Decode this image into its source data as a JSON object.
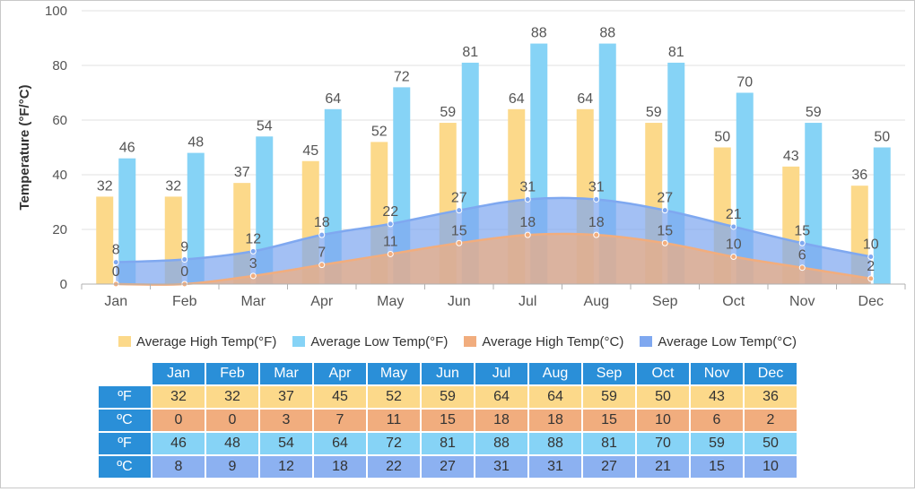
{
  "chart_data": {
    "type": "bar",
    "categories": [
      "Jan",
      "Feb",
      "Mar",
      "Apr",
      "May",
      "Jun",
      "Jul",
      "Aug",
      "Sep",
      "Oct",
      "Nov",
      "Dec"
    ],
    "ylabel": "Temperature (°F/°C)",
    "ylim": [
      0,
      100
    ],
    "yticks": [
      0,
      20,
      40,
      60,
      80,
      100
    ],
    "grid": true,
    "legend_position": "bottom",
    "series": [
      {
        "name": "Average High Temp(°F)",
        "kind": "bar",
        "color": "#fcd98a",
        "values": [
          32,
          32,
          37,
          45,
          52,
          59,
          64,
          64,
          59,
          50,
          43,
          36
        ]
      },
      {
        "name": "Average Low Temp(°F)",
        "kind": "bar",
        "color": "#86d3f6",
        "values": [
          46,
          48,
          54,
          64,
          72,
          81,
          88,
          88,
          81,
          70,
          59,
          50
        ]
      },
      {
        "name": "Average High Temp(°C)",
        "kind": "area",
        "color": "#f1ad7e",
        "values": [
          0,
          0,
          3,
          7,
          11,
          15,
          18,
          18,
          15,
          10,
          6,
          2
        ]
      },
      {
        "name": "Average Low Temp(°C)",
        "kind": "area",
        "color": "#7fa8f0",
        "values": [
          8,
          9,
          12,
          18,
          22,
          27,
          31,
          31,
          27,
          21,
          15,
          10
        ]
      }
    ]
  },
  "table": {
    "row_labels": [
      "ºF",
      "ºC",
      "ºF",
      "ºC"
    ]
  },
  "colors": {
    "header_bg": "#2a8fd8",
    "axis_text": "#555555",
    "grid": "#e0e0e0"
  }
}
